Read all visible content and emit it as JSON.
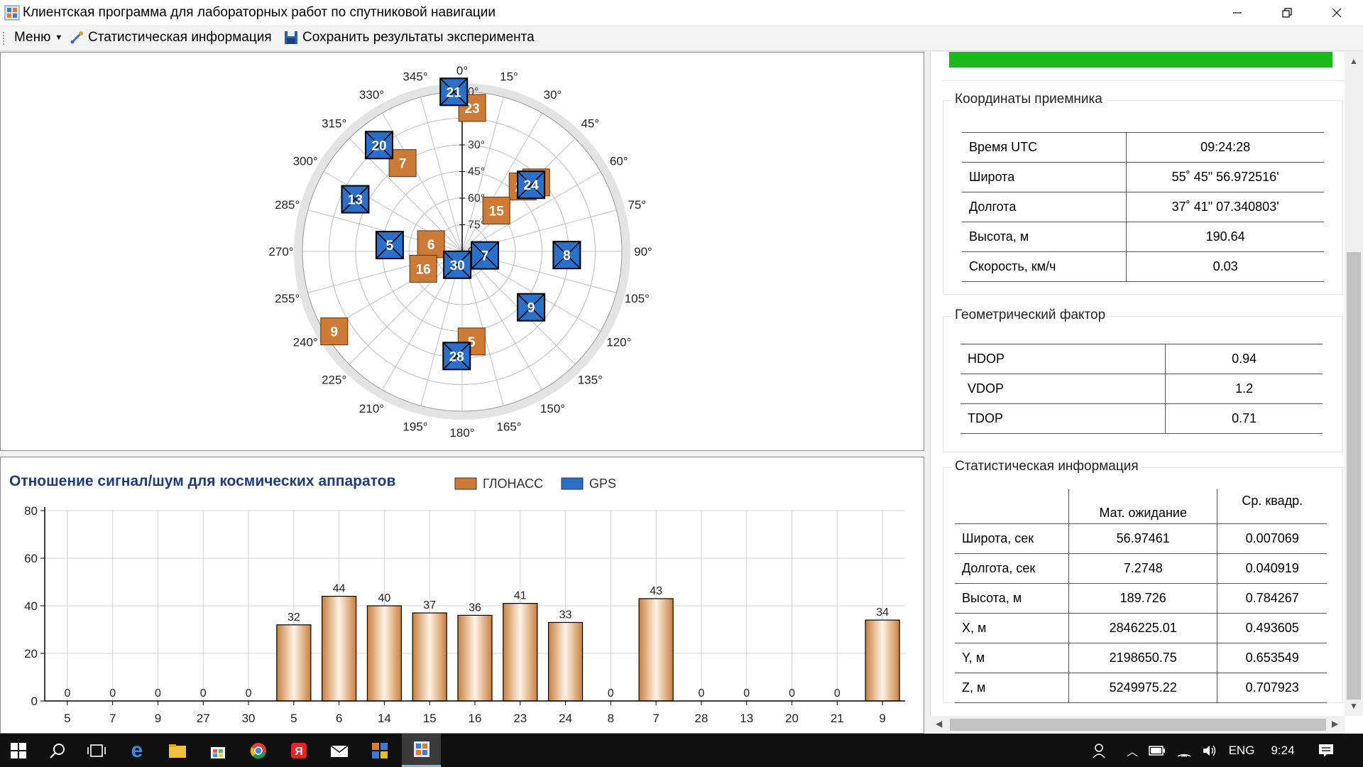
{
  "window": {
    "title": "Клиентская программа для лабораторных работ по спутниковой навигации",
    "minimize_icon": "minimize-icon",
    "restore_icon": "restore-icon",
    "close_icon": "close-icon"
  },
  "toolbar": {
    "menu_label": "Меню",
    "stats_label": "Статистическая информация",
    "save_label": "Сохранить результаты эксперимента"
  },
  "skyplot": {
    "azimuth_labels": [
      "0°",
      "15°",
      "30°",
      "45°",
      "60°",
      "75°",
      "90°",
      "105°",
      "120°",
      "135°",
      "150°",
      "165°",
      "180°",
      "195°",
      "210°",
      "225°",
      "240°",
      "255°",
      "270°",
      "285°",
      "300°",
      "315°",
      "330°",
      "345°"
    ],
    "elevation_labels": [
      "0°",
      "15°",
      "30°",
      "45°",
      "60°",
      "75°",
      "90°"
    ],
    "satellites": [
      {
        "id": "23",
        "system": "ГЛОНАСС",
        "az": 4,
        "el": 9
      },
      {
        "id": "7",
        "system": "ГЛОНАСС",
        "az": 326,
        "el": 30
      },
      {
        "id": "24",
        "system": "ГЛОНАСС",
        "az": 43,
        "el": 40
      },
      {
        "id": "14",
        "system": "ГЛОНАСС",
        "az": 47,
        "el": 33
      },
      {
        "id": "15",
        "system": "ГЛОНАСС",
        "az": 40,
        "el": 60
      },
      {
        "id": "6",
        "system": "ГЛОНАСС",
        "az": 283,
        "el": 72
      },
      {
        "id": "16",
        "system": "ГЛОНАСС",
        "az": 246,
        "el": 66
      },
      {
        "id": "9",
        "system": "ГЛОНАСС",
        "az": 238,
        "el": 5
      },
      {
        "id": "5",
        "system": "ГЛОНАСС",
        "az": 174,
        "el": 39
      },
      {
        "id": "21",
        "system": "GPS",
        "az": 357,
        "el": 0
      },
      {
        "id": "20",
        "system": "GPS",
        "az": 322,
        "el": 14
      },
      {
        "id": "13",
        "system": "GPS",
        "az": 296,
        "el": 23
      },
      {
        "id": "5",
        "system": "GPS",
        "az": 275,
        "el": 49
      },
      {
        "id": "30",
        "system": "GPS",
        "az": 200,
        "el": 82
      },
      {
        "id": "7",
        "system": "GPS",
        "az": 100,
        "el": 77
      },
      {
        "id": "8",
        "system": "GPS",
        "az": 92,
        "el": 31
      },
      {
        "id": "9",
        "system": "GPS",
        "az": 129,
        "el": 40
      },
      {
        "id": "28",
        "system": "GPS",
        "az": 183,
        "el": 31
      },
      {
        "id": "24",
        "system": "GPS",
        "az": 46,
        "el": 36
      }
    ]
  },
  "chart_data": {
    "type": "bar",
    "title": "Отношение сигнал/шум для космических аппаратов",
    "legend": [
      {
        "name": "ГЛОНАСС",
        "color": "#cc7a36"
      },
      {
        "name": "GPS",
        "color": "#2a6fc9"
      }
    ],
    "categories": [
      "5",
      "7",
      "9",
      "27",
      "30",
      "5",
      "6",
      "14",
      "15",
      "16",
      "23",
      "24",
      "8",
      "7",
      "28",
      "13",
      "20",
      "21",
      "9"
    ],
    "values": [
      0,
      0,
      0,
      0,
      0,
      32,
      44,
      40,
      37,
      36,
      41,
      33,
      0,
      43,
      0,
      0,
      0,
      0,
      34
    ],
    "ylim": [
      0,
      80
    ],
    "yticks": [
      "0",
      "20",
      "40",
      "60",
      "80"
    ],
    "grid": true,
    "legend_position": "top"
  },
  "receiver": {
    "title": "Координаты приемника",
    "rows": [
      {
        "label": "Время UTC",
        "value": "09:24:28"
      },
      {
        "label": "Широта",
        "value": "55˚ 45\" 56.972516'"
      },
      {
        "label": "Долгота",
        "value": "37˚ 41\" 07.340803'"
      },
      {
        "label": "Высота, м",
        "value": "190.64"
      },
      {
        "label": "Скорость, км/ч",
        "value": "0.03"
      }
    ]
  },
  "dop": {
    "title": "Геометрический фактор",
    "rows": [
      {
        "label": "HDOP",
        "value": "0.94"
      },
      {
        "label": "VDOP",
        "value": "1.2"
      },
      {
        "label": "TDOP",
        "value": "0.71"
      }
    ]
  },
  "stats": {
    "title": "Статистическая информация",
    "headers": [
      "",
      "Мат. ожидание",
      "Ср. квадр."
    ],
    "rows": [
      {
        "label": "Широта, сек",
        "mean": "56.97461",
        "sd": "0.007069"
      },
      {
        "label": "Долгота, сек",
        "mean": "7.2748",
        "sd": "0.040919"
      },
      {
        "label": "Высота, м",
        "mean": "189.726",
        "sd": "0.784267"
      },
      {
        "label": "X, м",
        "mean": "2846225.01",
        "sd": "0.493605"
      },
      {
        "label": "Y, м",
        "mean": "2198650.75",
        "sd": "0.653549"
      },
      {
        "label": "Z, м",
        "mean": "5249975.22",
        "sd": "0.707923"
      }
    ]
  },
  "taskbar": {
    "language": "ENG",
    "clock": "9:24"
  },
  "colors": {
    "glonass": "#cc7a36",
    "gps": "#2a6fc9",
    "progress": "#1ab81a",
    "title": "#1f3c7a"
  }
}
